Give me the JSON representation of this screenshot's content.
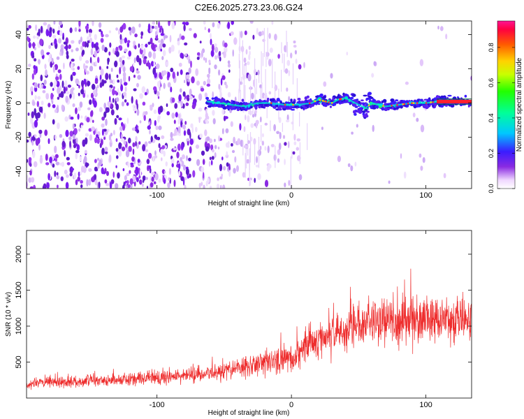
{
  "chart_data": [
    {
      "type": "heatmap",
      "title": "C2E6.2025.273.23.06.G24",
      "xlabel": "Height of straight line (km)",
      "ylabel": "Frequency (Hz)",
      "xlim": [
        -197,
        134
      ],
      "ylim": [
        -50,
        48
      ],
      "x_ticks": [
        -100,
        0,
        100
      ],
      "x_tick_labels": [
        "-100",
        "0",
        "100"
      ],
      "y_ticks": [
        -40,
        -20,
        0,
        20,
        40
      ],
      "y_tick_labels": [
        "-40",
        "-20",
        "0",
        "20",
        "40"
      ],
      "colorbar": {
        "label": "Normalized spectral amplitude",
        "range": [
          0,
          0.95
        ],
        "ticks": [
          0,
          0.2,
          0.4,
          0.6,
          0.8
        ],
        "tick_labels": [
          "0.0",
          "0.2",
          "0.4",
          "0.6",
          "0.8"
        ],
        "colormap": "gist_rainbow_r"
      },
      "signal_band": {
        "description": "narrow band near 0 Hz",
        "x": [
          -63,
          -55,
          -45,
          -35,
          -25,
          -15,
          -5,
          5,
          15,
          20,
          25,
          30,
          35,
          40,
          45,
          50,
          55,
          60,
          70,
          80,
          90,
          100,
          110,
          120,
          134
        ],
        "y": [
          1,
          0,
          -1,
          -2,
          0,
          0,
          -1,
          -1,
          0,
          2,
          1,
          0,
          2,
          3,
          1,
          -1,
          -3,
          0,
          -2,
          -1,
          0,
          0,
          1,
          1,
          1
        ]
      }
    },
    {
      "type": "line",
      "xlabel": "Height of straight line (km)",
      "ylabel": "SNR (10 * v/v)",
      "xlim": [
        -197,
        134
      ],
      "ylim": [
        0,
        2330
      ],
      "x_ticks": [
        -100,
        0,
        100
      ],
      "x_tick_labels": [
        "-100",
        "0",
        "100"
      ],
      "y_ticks": [
        500,
        1000,
        1500,
        2000
      ],
      "y_tick_labels": [
        "500",
        "1000",
        "1500",
        "2000"
      ],
      "series": [
        {
          "name": "SNR",
          "color": "#ee2d2d",
          "envelope_x": [
            -197,
            -150,
            -100,
            -60,
            -40,
            -20,
            0,
            10,
            20,
            40,
            60,
            80,
            100,
            120,
            134
          ],
          "envelope_mean": [
            200,
            240,
            280,
            340,
            420,
            480,
            560,
            700,
            820,
            950,
            1080,
            1080,
            1100,
            1100,
            1080
          ],
          "envelope_spread": [
            90,
            100,
            120,
            140,
            180,
            220,
            260,
            320,
            340,
            380,
            420,
            420,
            400,
            380,
            360
          ]
        }
      ]
    }
  ]
}
